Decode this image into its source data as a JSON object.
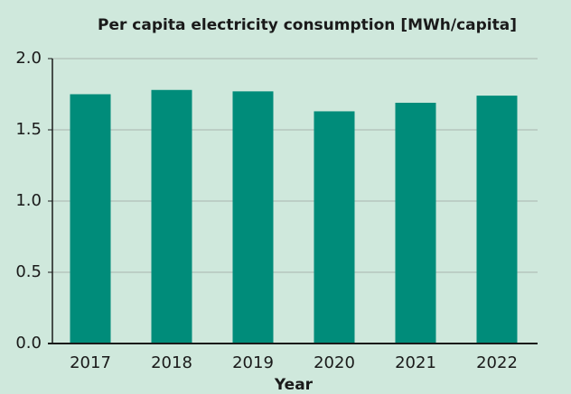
{
  "chart_data": {
    "type": "bar",
    "title": "Per capita electricity consumption [MWh/capita]",
    "x_label": "Year",
    "categories": [
      "2017",
      "2018",
      "2019",
      "2020",
      "2021",
      "2022"
    ],
    "values": [
      1.75,
      1.78,
      1.77,
      1.63,
      1.69,
      1.74
    ],
    "color": "#008c7a",
    "ylim": [
      0,
      2
    ],
    "yticks": [
      {
        "value": 0,
        "label": "0.0"
      },
      0.5,
      {
        "value": 1,
        "label": "1.0"
      },
      1.5,
      {
        "value": 2,
        "label": "2.0"
      }
    ],
    "grid": true
  }
}
